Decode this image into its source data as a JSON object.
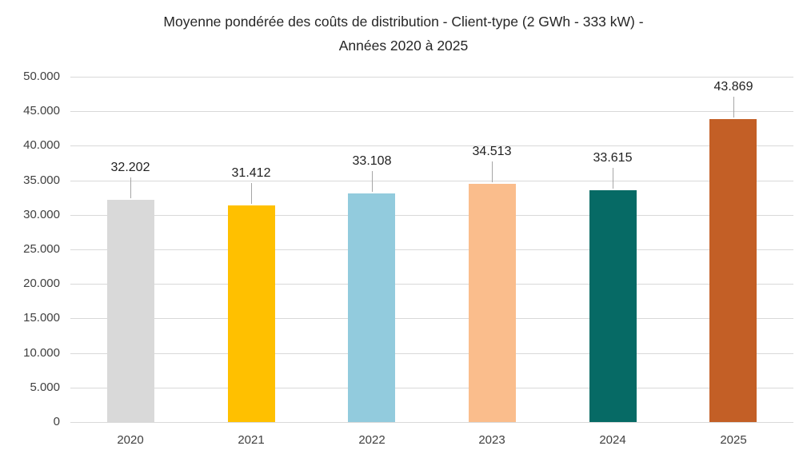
{
  "chart_data": {
    "type": "bar",
    "title": "Moyenne pondérée des coûts de distribution - Client-type (2 GWh - 333 kW) - Années 2020 à 2025",
    "title_lines": [
      "Moyenne pondérée des coûts de distribution - Client-type (2 GWh - 333 kW) -",
      "Années 2020 à 2025"
    ],
    "categories": [
      "2020",
      "2021",
      "2022",
      "2023",
      "2024",
      "2025"
    ],
    "values": [
      32202,
      31412,
      33108,
      34513,
      33615,
      43869
    ],
    "value_labels": [
      "32.202",
      "31.412",
      "33.108",
      "34.513",
      "33.615",
      "43.869"
    ],
    "bar_colors": [
      "#D9D9D9",
      "#FFC000",
      "#92CBDD",
      "#FABD8C",
      "#066A65",
      "#C35F26"
    ],
    "xlabel": "",
    "ylabel": "",
    "ylim": [
      0,
      50000
    ],
    "y_ticks": [
      {
        "value": 50000,
        "label": "50.000"
      },
      {
        "value": 45000,
        "label": "45.000"
      },
      {
        "value": 40000,
        "label": "40.000"
      },
      {
        "value": 35000,
        "label": "35.000"
      },
      {
        "value": 30000,
        "label": "30.000"
      },
      {
        "value": 25000,
        "label": "25.000"
      },
      {
        "value": 20000,
        "label": "20.000"
      },
      {
        "value": 15000,
        "label": "15.000"
      },
      {
        "value": 10000,
        "label": "10.000"
      },
      {
        "value": 5000,
        "label": "5.000"
      },
      {
        "value": 0,
        "label": "0"
      }
    ],
    "grid": "horizontal",
    "legend": "none",
    "colors": {
      "background": "#FFFFFF",
      "gridline": "#D9D9D9",
      "axis_line": "#D9D9D9",
      "leader_line": "#A6A6A6",
      "title_text": "#262626",
      "axis_text": "#404040",
      "value_label_text": "#1F1F1F"
    }
  }
}
